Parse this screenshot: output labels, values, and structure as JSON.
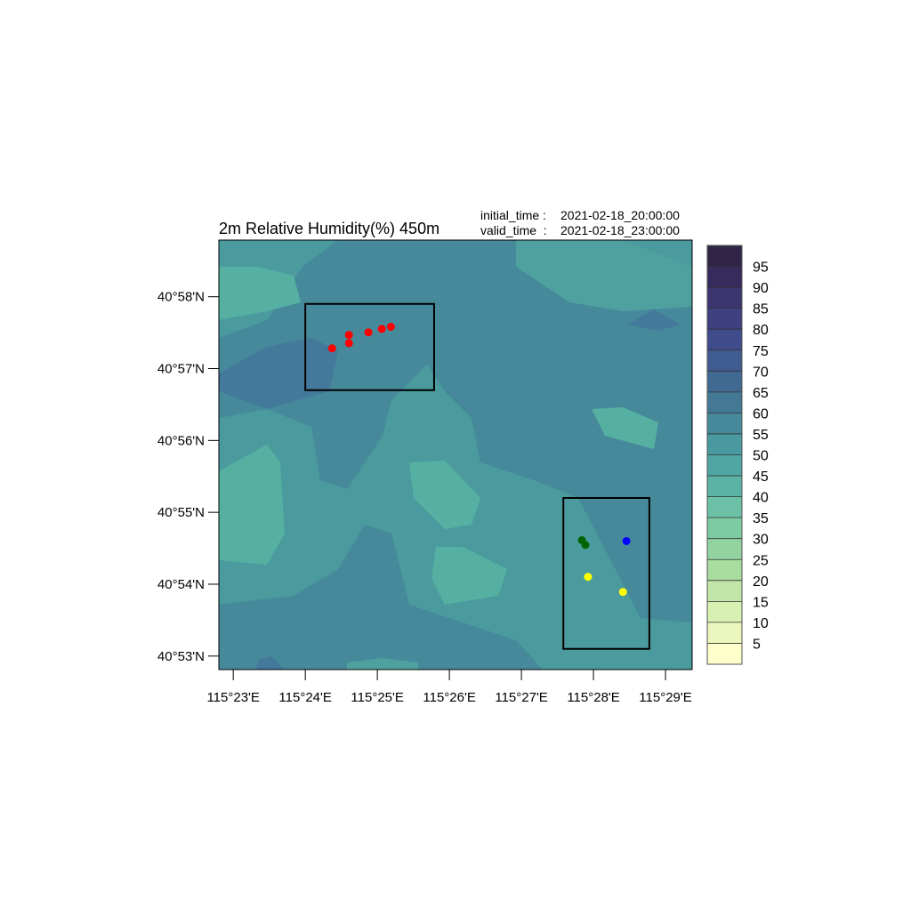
{
  "chart_data": {
    "type": "map",
    "title": "2m Relative Humidity(%) 450m",
    "initial_time_label": "initial_time :",
    "initial_time": "2021-02-18_20:00:00",
    "valid_time_label": "valid_time  :",
    "valid_time": "2021-02-18_23:00:00",
    "xlim": [
      115.38,
      115.4895
    ],
    "ylim": [
      40.8802,
      40.9798
    ],
    "xticks": [
      {
        "value": 115.383333,
        "label": "115°23'E"
      },
      {
        "value": 115.4,
        "label": "115°24'E"
      },
      {
        "value": 115.416667,
        "label": "115°25'E"
      },
      {
        "value": 115.433333,
        "label": "115°26'E"
      },
      {
        "value": 115.45,
        "label": "115°27'E"
      },
      {
        "value": 115.466667,
        "label": "115°28'E"
      },
      {
        "value": 115.483333,
        "label": "115°29'E"
      }
    ],
    "yticks": [
      {
        "value": 40.883333,
        "label": "40°53'N"
      },
      {
        "value": 40.9,
        "label": "40°54'N"
      },
      {
        "value": 40.916667,
        "label": "40°55'N"
      },
      {
        "value": 40.933333,
        "label": "40°56'N"
      },
      {
        "value": 40.95,
        "label": "40°57'N"
      },
      {
        "value": 40.966667,
        "label": "40°58'N"
      }
    ],
    "series": [
      {
        "color": "#ff0000",
        "x": [
          115.4062,
          115.4101,
          115.4101,
          115.4146,
          115.4177,
          115.4198
        ],
        "values": [
          40.9547,
          40.9578,
          40.9559,
          40.9584,
          40.9592,
          40.9597
        ]
      },
      {
        "color": "#006400",
        "x": [
          115.464,
          115.4648
        ],
        "values": [
          40.9102,
          40.9091
        ]
      },
      {
        "color": "#0000ff",
        "x": [
          115.4743
        ],
        "values": [
          40.91
        ]
      },
      {
        "color": "#ffff00",
        "x": [
          115.4654,
          115.4735
        ],
        "values": [
          40.9017,
          40.8982
        ]
      }
    ],
    "boxes": [
      {
        "x": [
          115.4,
          115.4298
        ],
        "y": [
          40.945,
          40.965
        ]
      },
      {
        "x": [
          115.4597,
          115.4796
        ],
        "y": [
          40.885,
          40.92
        ]
      }
    ],
    "colorbar": {
      "levels": [
        5,
        10,
        15,
        20,
        25,
        30,
        35,
        40,
        45,
        50,
        55,
        60,
        65,
        70,
        75,
        80,
        85,
        90,
        95
      ],
      "colors": [
        "#ffffcc",
        "#ecf7bf",
        "#d9f0b3",
        "#c2e6a8",
        "#a9dc9f",
        "#93d3a0",
        "#7dcba3",
        "#6bc0a5",
        "#5bb3a5",
        "#4fa6a3",
        "#4a99a0",
        "#46899b",
        "#437995",
        "#416a92",
        "#3f5b90",
        "#3f4c8b",
        "#3e4080",
        "#3b3570",
        "#362b5c",
        "#302547"
      ]
    }
  }
}
